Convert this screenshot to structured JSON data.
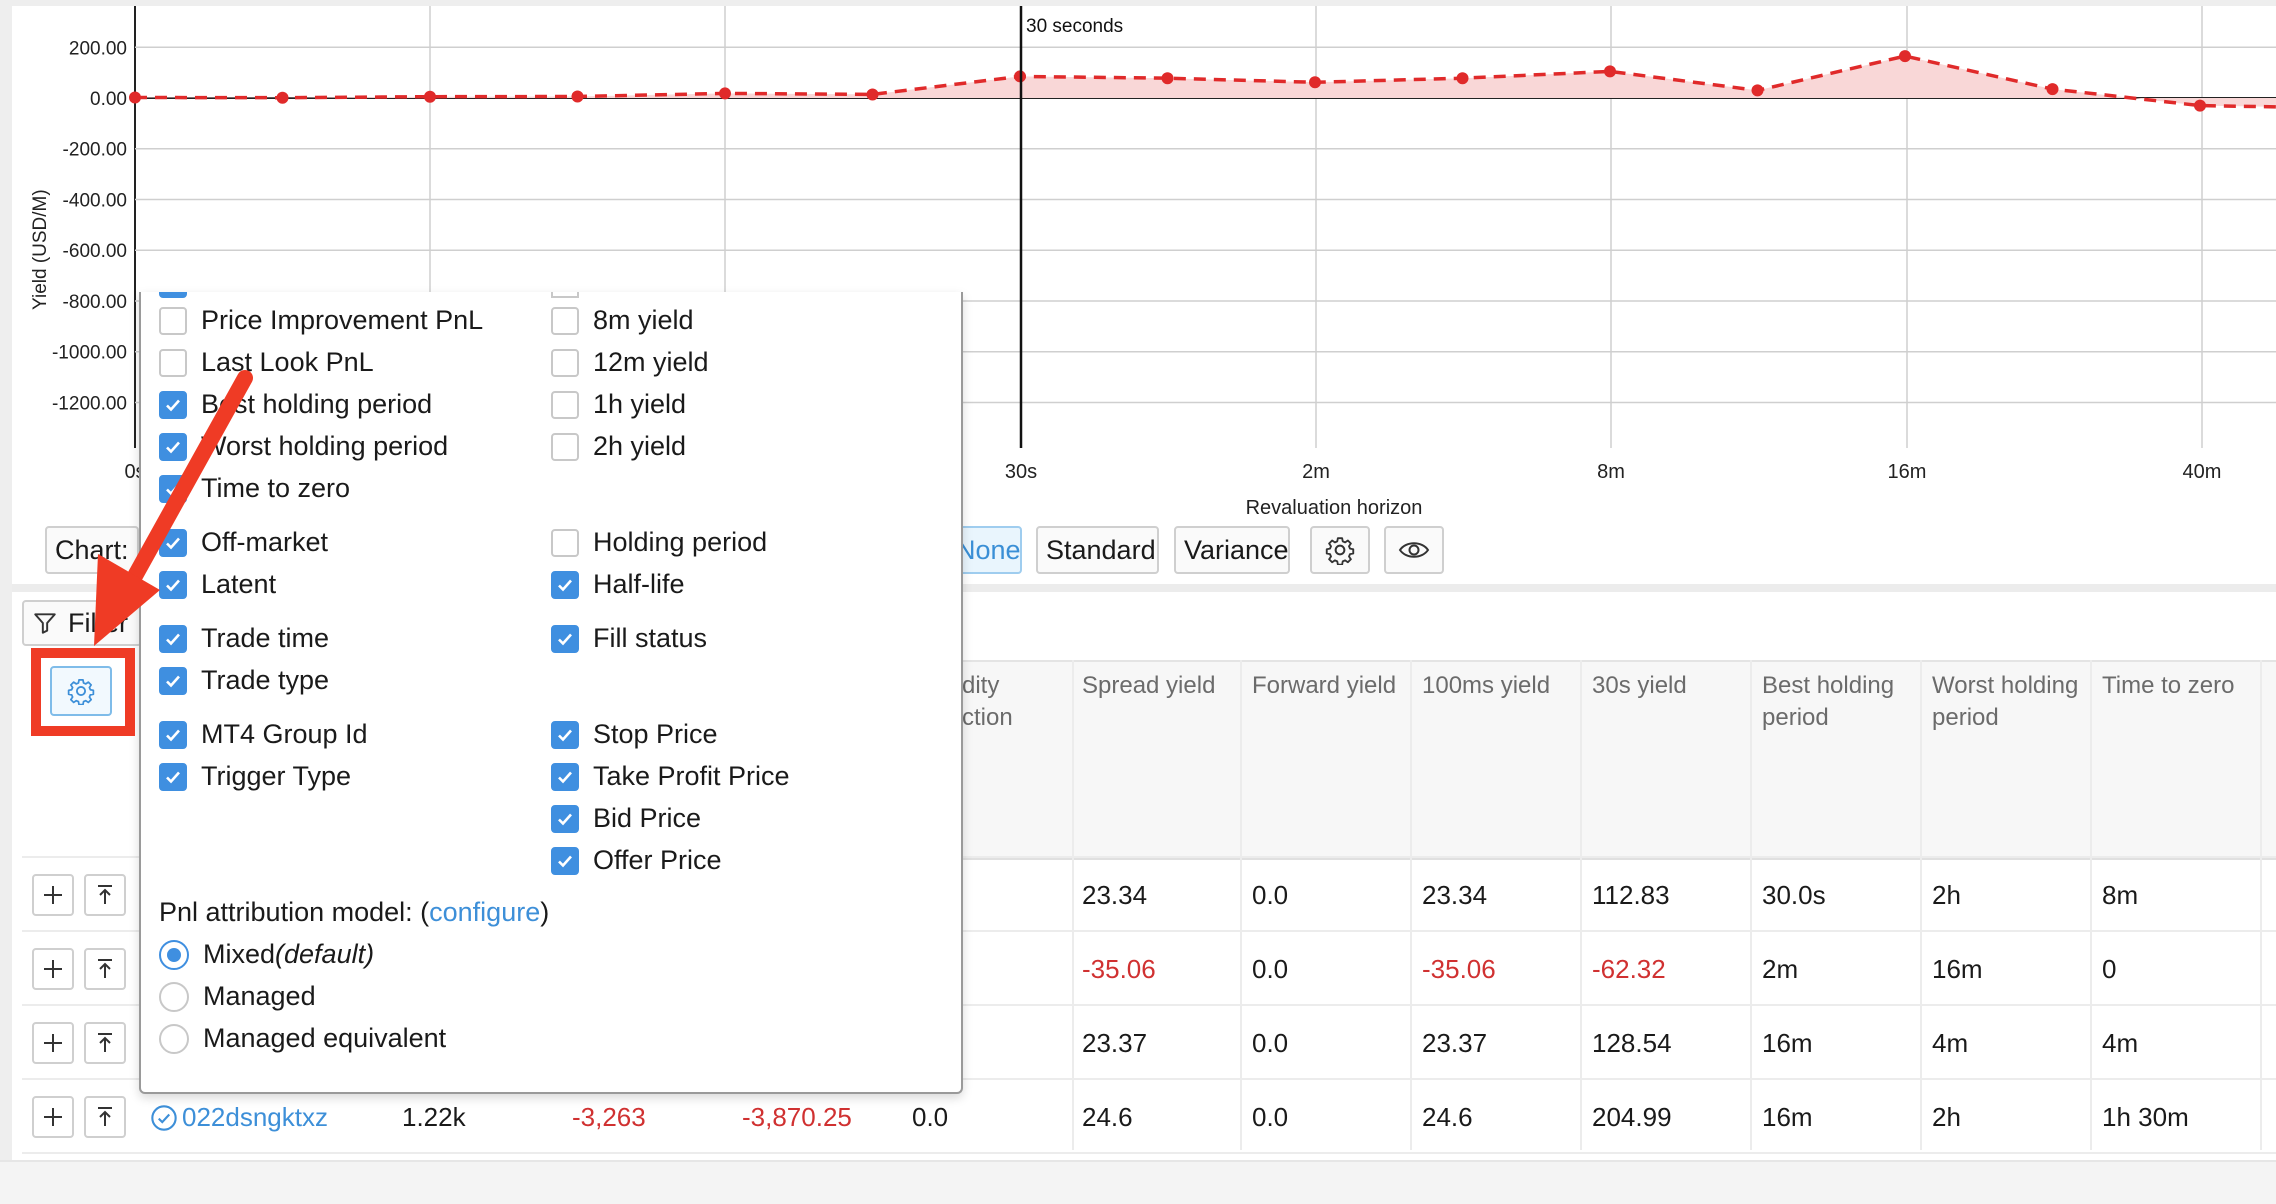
{
  "chart": {
    "ylabel": "Yield (USD/M)",
    "xlabel": "Revaluation horizon",
    "y_ticks": [
      "200.00",
      "0.00",
      "-200.00",
      "-400.00",
      "-600.00",
      "-800.00",
      "-1000.00",
      "-1200.00"
    ],
    "x_ticks": [
      "0s",
      "30s",
      "2m",
      "8m",
      "16m",
      "40m"
    ],
    "marker_label": "30 seconds",
    "line_color": "#e02a2a",
    "fill_color": "#f9d7d7"
  },
  "chart_data": {
    "type": "line",
    "xlabel": "Revaluation horizon",
    "ylabel": "Yield (USD/M)",
    "ylim": [
      -1300,
      280
    ],
    "x_tick_labels": [
      "0s",
      "30s",
      "2m",
      "8m",
      "16m",
      "40m"
    ],
    "annotation": "30 seconds",
    "series": [
      {
        "values": [
          2,
          1,
          5,
          6,
          18,
          14,
          85,
          78,
          62,
          78,
          105,
          30,
          165,
          35,
          -30,
          -40
        ]
      }
    ],
    "legend": "none",
    "grid": true
  },
  "toolbar": {
    "chart_label": "Chart:",
    "none_label": "None",
    "standard_label": "Standard",
    "variance_label": "Variance",
    "filter_label": "Filter"
  },
  "table": {
    "headers": [
      "dity\nction",
      "Spread yield",
      "Forward yield",
      "100ms yield",
      "30s yield",
      "Best holding\nperiod",
      "Worst holding\nperiod",
      "Time to zero"
    ],
    "rows": [
      {
        "spread": "23.34",
        "forward": "0.0",
        "ms100": "23.34",
        "s30": "112.83",
        "best": "30.0s",
        "worst": "2h",
        "ttz": "8m"
      },
      {
        "spread": "-35.06",
        "forward": "0.0",
        "ms100": "-35.06",
        "s30": "-62.32",
        "best": "2m",
        "worst": "16m",
        "ttz": "0"
      },
      {
        "spread": "23.37",
        "forward": "0.0",
        "ms100": "23.37",
        "s30": "128.54",
        "best": "16m",
        "worst": "4m",
        "ttz": "4m"
      },
      {
        "id": "022dsngktxz",
        "c1": "1.22k",
        "c2": "-3,263",
        "c3": "-3,870.25",
        "c4": "0.0",
        "spread": "24.6",
        "forward": "0.0",
        "ms100": "24.6",
        "s30": "204.99",
        "best": "16m",
        "worst": "2h",
        "ttz": "1h 30m"
      }
    ]
  },
  "popup": {
    "left_options": [
      {
        "label": "Price Improvement PnL",
        "checked": false
      },
      {
        "label": "Last Look PnL",
        "checked": false
      },
      {
        "label": "Best holding period",
        "checked": true
      },
      {
        "label": "Worst holding period",
        "checked": true
      },
      {
        "label": "Time to zero",
        "checked": true
      },
      {
        "label": "Off-market",
        "checked": true
      },
      {
        "label": "Latent",
        "checked": true
      },
      {
        "label": "Trade time",
        "checked": true
      },
      {
        "label": "Trade type",
        "checked": true
      },
      {
        "label": "MT4 Group Id",
        "checked": true
      },
      {
        "label": "Trigger Type",
        "checked": true
      }
    ],
    "right_options": [
      {
        "label": "8m yield",
        "checked": false
      },
      {
        "label": "12m yield",
        "checked": false
      },
      {
        "label": "1h yield",
        "checked": false
      },
      {
        "label": "2h yield",
        "checked": false
      },
      {
        "label": "Holding period",
        "checked": false
      },
      {
        "label": "Half-life",
        "checked": true
      },
      {
        "label": "Fill status",
        "checked": true
      },
      {
        "label": "Stop Price",
        "checked": true
      },
      {
        "label": "Take Profit Price",
        "checked": true
      },
      {
        "label": "Bid Price",
        "checked": true
      },
      {
        "label": "Offer Price",
        "checked": true
      }
    ],
    "attribution_label": "Pnl attribution model: (",
    "configure_link": "configure",
    "attribution_close": ")",
    "radios": [
      {
        "label": "Mixed",
        "suffix": "(default)",
        "selected": true
      },
      {
        "label": "Managed",
        "suffix": "",
        "selected": false
      },
      {
        "label": "Managed equivalent",
        "suffix": "",
        "selected": false
      }
    ]
  },
  "annotation": {
    "arrow_color": "#ef3b25"
  }
}
